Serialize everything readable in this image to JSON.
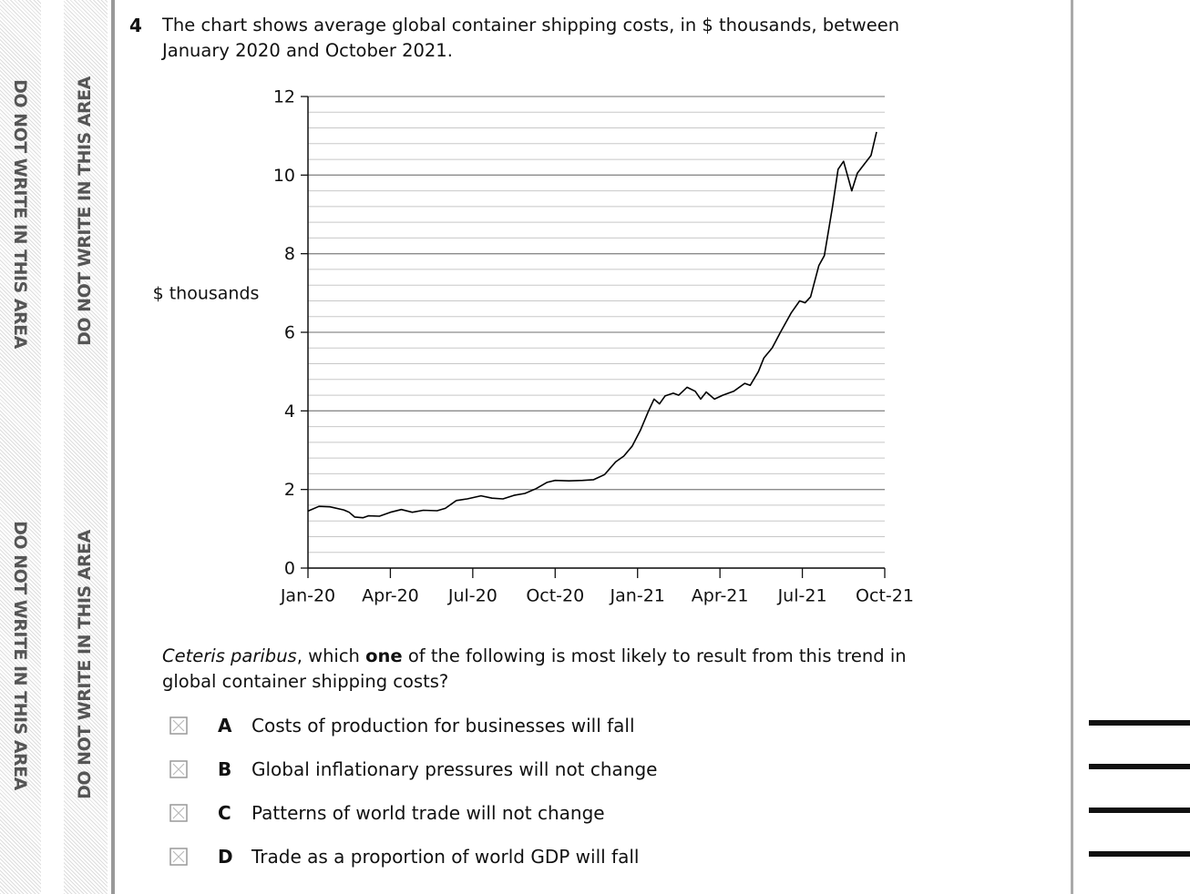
{
  "margin_notes": [
    "DO NOT WRITE IN THIS AREA",
    "DO NOT WRITE IN THIS AREA",
    "DO NOT WRITE IN THIS AREA",
    "DO NOT WRITE IN THIS AREA"
  ],
  "question": {
    "number": "4",
    "text": "The chart shows average global container shipping costs, in $ thousands, between January 2020 and October 2021."
  },
  "chart_data": {
    "type": "line",
    "ylabel": "$ thousands",
    "color": "#000000",
    "x": [
      0,
      0.4,
      0.8,
      1.3,
      1.5,
      1.7,
      2.0,
      2.2,
      2.6,
      3.0,
      3.4,
      3.8,
      4.2,
      4.7,
      5.0,
      5.4,
      5.8,
      6.3,
      6.7,
      7.1,
      7.5,
      7.9,
      8.3,
      8.7,
      9.0,
      9.5,
      10.0,
      10.4,
      10.8,
      11.2,
      11.5,
      11.8,
      12.1,
      12.4,
      12.6,
      12.8,
      13.0,
      13.3,
      13.5,
      13.8,
      14.1,
      14.3,
      14.5,
      14.8,
      15.1,
      15.5,
      15.9,
      16.1,
      16.4,
      16.6,
      16.9,
      17.2,
      17.6,
      17.9,
      18.1,
      18.3,
      18.6,
      18.8,
      19.1,
      19.3,
      19.5,
      19.8,
      20.0,
      20.5,
      20.7
    ],
    "values": [
      1.45,
      1.57,
      1.56,
      1.48,
      1.42,
      1.3,
      1.28,
      1.33,
      1.32,
      1.42,
      1.49,
      1.42,
      1.47,
      1.46,
      1.52,
      1.72,
      1.76,
      1.84,
      1.78,
      1.76,
      1.85,
      1.9,
      2.02,
      2.18,
      2.23,
      2.22,
      2.23,
      2.25,
      2.38,
      2.7,
      2.85,
      3.1,
      3.5,
      4.0,
      4.3,
      4.18,
      4.38,
      4.45,
      4.4,
      4.6,
      4.5,
      4.3,
      4.48,
      4.3,
      4.4,
      4.5,
      4.7,
      4.65,
      5.0,
      5.35,
      5.6,
      6.0,
      6.5,
      6.8,
      6.75,
      6.9,
      7.7,
      7.95,
      9.2,
      10.15,
      10.35,
      9.6,
      10.05,
      10.5,
      11.1
    ],
    "xlim": [
      0,
      21
    ],
    "xticks": [
      {
        "value": 0,
        "label": "Jan-20"
      },
      {
        "value": 3,
        "label": "Apr-20"
      },
      {
        "value": 6,
        "label": "Jul-20"
      },
      {
        "value": 9,
        "label": "Oct-20"
      },
      {
        "value": 12,
        "label": "Jan-21"
      },
      {
        "value": 15,
        "label": "Apr-21"
      },
      {
        "value": 18,
        "label": "Jul-21"
      },
      {
        "value": 21,
        "label": "Oct-21"
      }
    ],
    "ylim": [
      0,
      12
    ],
    "yticks": [
      0,
      2,
      4,
      6,
      8,
      10,
      12
    ],
    "grid": true,
    "minor_grid_step": 0.4
  },
  "prompt": {
    "italic": "Ceteris paribus",
    "part1": ", which ",
    "bold": "one",
    "part2": " of the following is most likely to result from this trend in global container shipping costs?"
  },
  "options": [
    {
      "letter": "A",
      "text": "Costs of production for businesses will fall"
    },
    {
      "letter": "B",
      "text": "Global inflationary pressures will not change"
    },
    {
      "letter": "C",
      "text": "Patterns of world trade will not change"
    },
    {
      "letter": "D",
      "text": "Trade as a proportion of world GDP will fall"
    }
  ]
}
